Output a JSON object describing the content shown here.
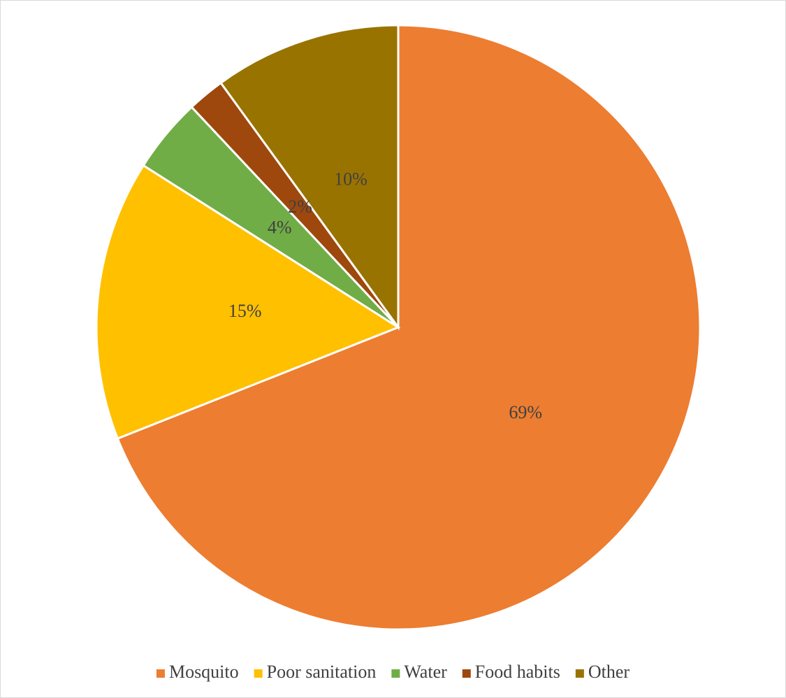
{
  "chart_data": {
    "type": "pie",
    "categories": [
      "Mosquito",
      "Poor sanitation",
      "Water",
      "Food habits",
      "Other"
    ],
    "values": [
      69,
      15,
      4,
      2,
      10
    ],
    "value_labels": [
      "69%",
      "15%",
      "4%",
      "2%",
      "10%"
    ],
    "colors": [
      "#ED7D31",
      "#FFC000",
      "#70AD47",
      "#9E480E",
      "#997300"
    ],
    "legend": "bottom"
  }
}
